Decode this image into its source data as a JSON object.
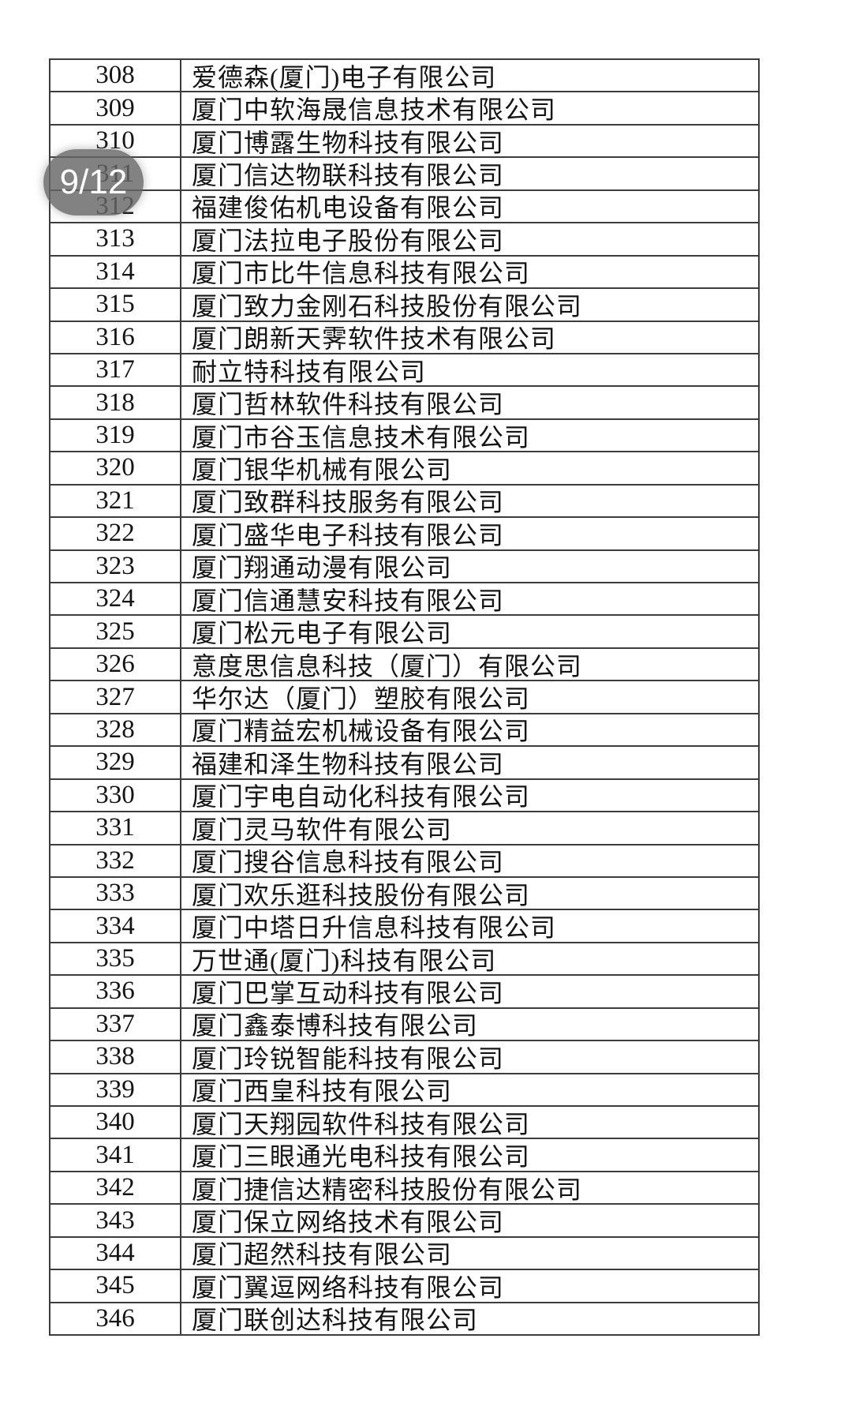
{
  "viewer": {
    "page_indicator": "9/12"
  },
  "colors": {
    "background": "#ffffff",
    "table_border": "#3c3c3c",
    "text": "#141414",
    "badge_background": "#666666",
    "badge_text": "#ffffff"
  },
  "table": {
    "rows": [
      {
        "no": "308",
        "company": "爱德森(厦门)电子有限公司"
      },
      {
        "no": "309",
        "company": "厦门中软海晟信息技术有限公司"
      },
      {
        "no": "310",
        "company": "厦门博露生物科技有限公司"
      },
      {
        "no": "311",
        "company": "厦门信达物联科技有限公司"
      },
      {
        "no": "312",
        "company": "福建俊佑机电设备有限公司"
      },
      {
        "no": "313",
        "company": "厦门法拉电子股份有限公司"
      },
      {
        "no": "314",
        "company": "厦门市比牛信息科技有限公司"
      },
      {
        "no": "315",
        "company": "厦门致力金刚石科技股份有限公司"
      },
      {
        "no": "316",
        "company": "厦门朗新天霁软件技术有限公司"
      },
      {
        "no": "317",
        "company": "耐立特科技有限公司"
      },
      {
        "no": "318",
        "company": "厦门哲林软件科技有限公司"
      },
      {
        "no": "319",
        "company": "厦门市谷玉信息技术有限公司"
      },
      {
        "no": "320",
        "company": "厦门银华机械有限公司"
      },
      {
        "no": "321",
        "company": "厦门致群科技服务有限公司"
      },
      {
        "no": "322",
        "company": "厦门盛华电子科技有限公司"
      },
      {
        "no": "323",
        "company": "厦门翔通动漫有限公司"
      },
      {
        "no": "324",
        "company": "厦门信通慧安科技有限公司"
      },
      {
        "no": "325",
        "company": "厦门松元电子有限公司"
      },
      {
        "no": "326",
        "company": "意度思信息科技（厦门）有限公司"
      },
      {
        "no": "327",
        "company": "华尔达（厦门）塑胶有限公司"
      },
      {
        "no": "328",
        "company": "厦门精益宏机械设备有限公司"
      },
      {
        "no": "329",
        "company": "福建和泽生物科技有限公司"
      },
      {
        "no": "330",
        "company": "厦门宇电自动化科技有限公司"
      },
      {
        "no": "331",
        "company": "厦门灵马软件有限公司"
      },
      {
        "no": "332",
        "company": "厦门搜谷信息科技有限公司"
      },
      {
        "no": "333",
        "company": "厦门欢乐逛科技股份有限公司"
      },
      {
        "no": "334",
        "company": "厦门中塔日升信息科技有限公司"
      },
      {
        "no": "335",
        "company": "万世通(厦门)科技有限公司"
      },
      {
        "no": "336",
        "company": "厦门巴掌互动科技有限公司"
      },
      {
        "no": "337",
        "company": "厦门鑫泰博科技有限公司"
      },
      {
        "no": "338",
        "company": "厦门玲锐智能科技有限公司"
      },
      {
        "no": "339",
        "company": "厦门西皇科技有限公司"
      },
      {
        "no": "340",
        "company": "厦门天翔园软件科技有限公司"
      },
      {
        "no": "341",
        "company": "厦门三眼通光电科技有限公司"
      },
      {
        "no": "342",
        "company": "厦门捷信达精密科技股份有限公司"
      },
      {
        "no": "343",
        "company": "厦门保立网络技术有限公司"
      },
      {
        "no": "344",
        "company": "厦门超然科技有限公司"
      },
      {
        "no": "345",
        "company": "厦门翼逗网络科技有限公司"
      },
      {
        "no": "346",
        "company": "厦门联创达科技有限公司"
      }
    ]
  }
}
